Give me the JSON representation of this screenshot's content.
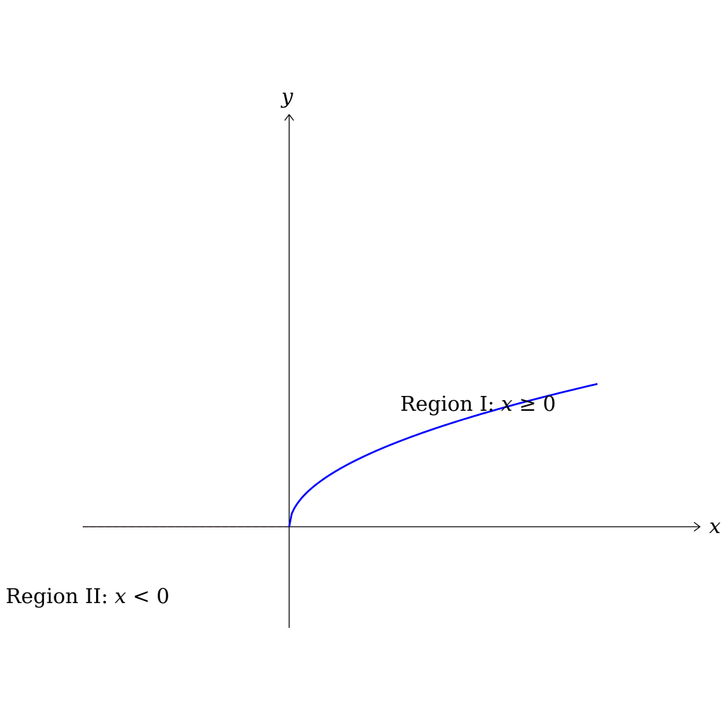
{
  "axes": {
    "x_label": "x",
    "y_label": "y"
  },
  "regions": {
    "region_one": {
      "prefix": "Region I: ",
      "var": "x",
      "relation": " ≥ 0"
    },
    "region_two": {
      "prefix": "Region II: ",
      "var": "x",
      "relation": " < 0"
    }
  },
  "colors": {
    "curve": "#0000ff",
    "dashed_line": "#ff0000",
    "axes": "#000000"
  },
  "chart_data": {
    "type": "line",
    "series": [
      {
        "values_x": [
          0,
          1.5
        ],
        "values_y": [
          0,
          0.35
        ],
        "note_shape": "sqrt"
      }
    ],
    "xlim": [
      -1,
      2
    ],
    "ylim": [
      -0.5,
      2
    ]
  }
}
